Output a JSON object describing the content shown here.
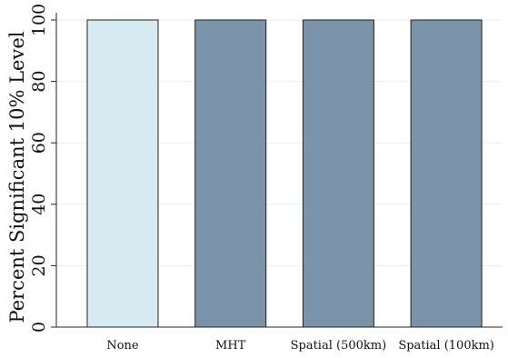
{
  "chart_data": {
    "type": "bar",
    "categories": [
      "None",
      "MHT",
      "Spatial (500km)",
      "Spatial (100km)"
    ],
    "values": [
      100,
      100,
      100,
      100
    ],
    "bar_colors": [
      "#d6ebf1",
      "#7a93a8",
      "#7a93a8",
      "#7a93a8"
    ],
    "bar_outline": "#222222",
    "title": "",
    "xlabel": "",
    "ylabel": "Percent Significant 10% Level",
    "ylim": [
      0,
      100
    ],
    "yticks": [
      0,
      20,
      40,
      60,
      80,
      100
    ],
    "grid": true,
    "grid_color": "#eeeeee"
  }
}
